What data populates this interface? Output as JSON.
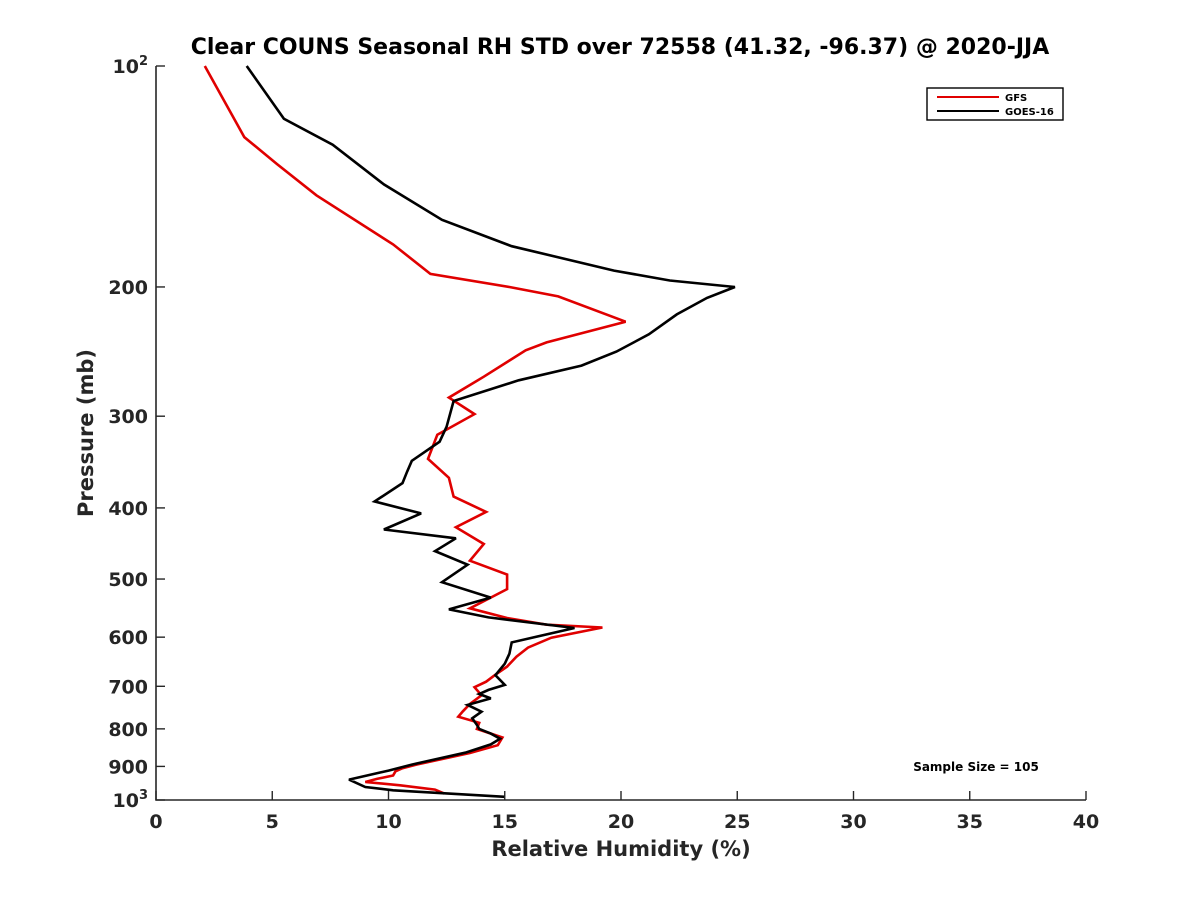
{
  "chart_data": {
    "type": "line",
    "title": "Clear COUNS Seasonal RH STD over 72558 (41.32, -96.37) @ 2020-JJA",
    "xlabel": "Relative Humidity (%)",
    "ylabel": "Pressure (mb)",
    "xlim": [
      0,
      40
    ],
    "ylim": [
      100,
      1000
    ],
    "yscale": "log",
    "y_reversed": true,
    "grid": false,
    "legend_position": "top-right",
    "xticks": [
      0,
      5,
      10,
      15,
      20,
      25,
      30,
      35,
      40
    ],
    "xtick_labels": [
      "0",
      "5",
      "10",
      "15",
      "20",
      "25",
      "30",
      "35",
      "40"
    ],
    "yticks": [
      {
        "value": 100,
        "base": "10",
        "exp": "2"
      },
      {
        "value": 200,
        "label": "200"
      },
      {
        "value": 300,
        "label": "300"
      },
      {
        "value": 400,
        "label": "400"
      },
      {
        "value": 500,
        "label": "500"
      },
      {
        "value": 600,
        "label": "600"
      },
      {
        "value": 700,
        "label": "700"
      },
      {
        "value": 800,
        "label": "800"
      },
      {
        "value": 900,
        "label": "900"
      },
      {
        "value": 1000,
        "base": "10",
        "exp": "3"
      }
    ],
    "series": [
      {
        "name": "GFS",
        "color": "#e00000",
        "points": [
          [
            2.1,
            100
          ],
          [
            3.8,
            125
          ],
          [
            5.2,
            136
          ],
          [
            6.9,
            150
          ],
          [
            10.2,
            175
          ],
          [
            11.8,
            192
          ],
          [
            15.2,
            200
          ],
          [
            17.3,
            206
          ],
          [
            20.2,
            223
          ],
          [
            16.8,
            238
          ],
          [
            15.9,
            244
          ],
          [
            14.1,
            265
          ],
          [
            12.6,
            283
          ],
          [
            13.7,
            298
          ],
          [
            12.1,
            318
          ],
          [
            11.7,
            343
          ],
          [
            12.6,
            364
          ],
          [
            12.8,
            386
          ],
          [
            14.2,
            405
          ],
          [
            12.9,
            425
          ],
          [
            14.1,
            448
          ],
          [
            13.5,
            472
          ],
          [
            15.1,
            493
          ],
          [
            15.1,
            516
          ],
          [
            14.2,
            534
          ],
          [
            13.5,
            548
          ],
          [
            15.1,
            565
          ],
          [
            16.8,
            577
          ],
          [
            19.2,
            582
          ],
          [
            17.0,
            601
          ],
          [
            16.0,
            620
          ],
          [
            15.5,
            638
          ],
          [
            15.1,
            658
          ],
          [
            14.6,
            675
          ],
          [
            14.2,
            690
          ],
          [
            13.7,
            702
          ],
          [
            14.0,
            720
          ],
          [
            13.5,
            740
          ],
          [
            13.2,
            757
          ],
          [
            13.0,
            770
          ],
          [
            13.9,
            785
          ],
          [
            13.8,
            800
          ],
          [
            14.9,
            822
          ],
          [
            14.7,
            842
          ],
          [
            13.5,
            863
          ],
          [
            11.2,
            895
          ],
          [
            10.6,
            905
          ],
          [
            10.3,
            914
          ],
          [
            10.2,
            926
          ],
          [
            9.5,
            936
          ],
          [
            9.0,
            945
          ],
          [
            10.5,
            955
          ],
          [
            12.0,
            968
          ],
          [
            12.4,
            980
          ]
        ]
      },
      {
        "name": "GOES-16",
        "color": "#000000",
        "points": [
          [
            3.9,
            100
          ],
          [
            5.5,
            118
          ],
          [
            7.6,
            128
          ],
          [
            9.8,
            145
          ],
          [
            12.3,
            162
          ],
          [
            15.3,
            176
          ],
          [
            19.7,
            190
          ],
          [
            22.1,
            196
          ],
          [
            24.9,
            200
          ],
          [
            23.7,
            207
          ],
          [
            22.4,
            218
          ],
          [
            21.2,
            232
          ],
          [
            19.8,
            245
          ],
          [
            18.3,
            256
          ],
          [
            15.6,
            268
          ],
          [
            12.8,
            286
          ],
          [
            12.5,
            310
          ],
          [
            12.2,
            325
          ],
          [
            11.0,
            345
          ],
          [
            10.8,
            357
          ],
          [
            10.6,
            370
          ],
          [
            9.4,
            392
          ],
          [
            11.4,
            407
          ],
          [
            9.8,
            428
          ],
          [
            12.9,
            440
          ],
          [
            12.0,
            458
          ],
          [
            13.4,
            478
          ],
          [
            12.3,
            505
          ],
          [
            14.4,
            530
          ],
          [
            12.6,
            550
          ],
          [
            14.3,
            564
          ],
          [
            18.0,
            583
          ],
          [
            15.3,
            610
          ],
          [
            15.2,
            632
          ],
          [
            15.0,
            652
          ],
          [
            14.6,
            676
          ],
          [
            15.0,
            697
          ],
          [
            14.3,
            708
          ],
          [
            13.9,
            717
          ],
          [
            14.4,
            727
          ],
          [
            13.4,
            742
          ],
          [
            14.0,
            758
          ],
          [
            13.6,
            774
          ],
          [
            13.8,
            790
          ],
          [
            13.9,
            800
          ],
          [
            14.4,
            812
          ],
          [
            14.8,
            825
          ],
          [
            14.4,
            840
          ],
          [
            13.3,
            862
          ],
          [
            11.0,
            895
          ],
          [
            10.0,
            912
          ],
          [
            8.3,
            938
          ],
          [
            9.0,
            960
          ],
          [
            10.2,
            970
          ],
          [
            15.0,
            990
          ]
        ]
      }
    ],
    "annotation": "Sample Size = 105"
  }
}
